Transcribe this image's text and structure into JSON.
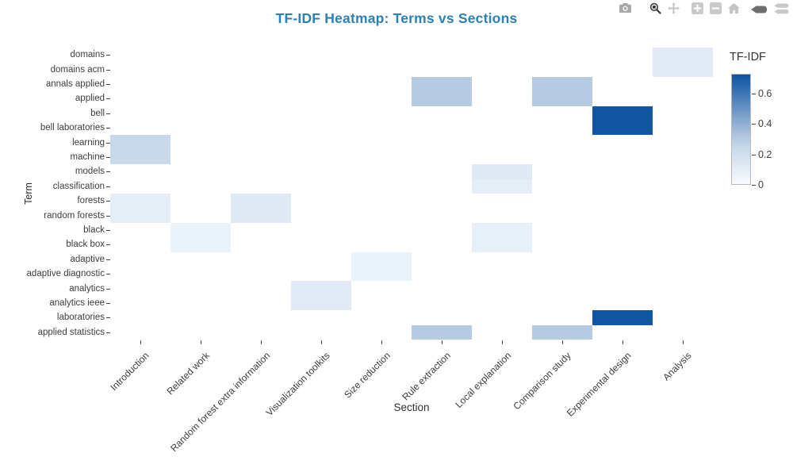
{
  "title": "TF-IDF Heatmap: Terms vs Sections",
  "colors": {
    "title": "#2b80b4",
    "tick_label": "#3d3d3d",
    "heat_low": "#f7fbff",
    "heat_high": "#0d52a2",
    "modebar_inactive": "#c4c4c4",
    "modebar_medium": "#a8a8a8",
    "modebar_active": "#3c3c3c",
    "modebar_hover_active": "#6f6f6f"
  },
  "modebar": {
    "icons": [
      {
        "name": "camera",
        "active": false
      },
      {
        "name": "zoom",
        "active": true
      },
      {
        "name": "pan",
        "active": false
      },
      {
        "name": "zoom-in",
        "active": false
      },
      {
        "name": "zoom-out",
        "active": false
      },
      {
        "name": "home",
        "active": false
      },
      {
        "name": "hover-closest",
        "active": true
      },
      {
        "name": "hover-compare",
        "active": false
      }
    ]
  },
  "chart_data": {
    "type": "heatmap",
    "title": "TF-IDF Heatmap: Terms vs Sections",
    "xlabel": "Section",
    "ylabel": "Term",
    "x_tick_angle": -45,
    "grid": false,
    "x_categories": [
      "Introduction",
      "Related work",
      "Random forest extra information",
      "Visualization toolkits",
      "Size reduction",
      "Rule extraction",
      "Local explanation",
      "Comparison study",
      "Experimental design",
      "Analysis"
    ],
    "y_categories": [
      "domains",
      "domains acm",
      "annals applied",
      "applied",
      "bell",
      "bell laboratories",
      "learning",
      "machine",
      "models",
      "classification",
      "forests",
      "random forests",
      "black",
      "black box",
      "adaptive",
      "adaptive diagnostic",
      "analytics",
      "analytics ieee",
      "laboratories",
      "applied statistics"
    ],
    "colorbar": {
      "title": "TF-IDF",
      "position": "right",
      "min": 0,
      "max": 0.73,
      "ticks": [
        0,
        0.2,
        0.4,
        0.6
      ],
      "colorscale": [
        [
          0,
          "#f7fbff"
        ],
        [
          0.33,
          "#c8d9e9"
        ],
        [
          0.45,
          "#aec4de"
        ],
        [
          1,
          "#0d52a2"
        ]
      ]
    },
    "cells": [
      {
        "term": "domains",
        "section": "Analysis",
        "value": 0.11
      },
      {
        "term": "domains acm",
        "section": "Analysis",
        "value": 0.11
      },
      {
        "term": "annals applied",
        "section": "Rule extraction",
        "value": 0.3
      },
      {
        "term": "annals applied",
        "section": "Comparison study",
        "value": 0.3
      },
      {
        "term": "applied",
        "section": "Rule extraction",
        "value": 0.3
      },
      {
        "term": "applied",
        "section": "Comparison study",
        "value": 0.3
      },
      {
        "term": "bell",
        "section": "Experimental design",
        "value": 0.72
      },
      {
        "term": "bell laboratories",
        "section": "Experimental design",
        "value": 0.72
      },
      {
        "term": "learning",
        "section": "Introduction",
        "value": 0.24
      },
      {
        "term": "machine",
        "section": "Introduction",
        "value": 0.24
      },
      {
        "term": "models",
        "section": "Local explanation",
        "value": 0.13
      },
      {
        "term": "classification",
        "section": "Local explanation",
        "value": 0.09
      },
      {
        "term": "forests",
        "section": "Introduction",
        "value": 0.09
      },
      {
        "term": "forests",
        "section": "Random forest extra information",
        "value": 0.12
      },
      {
        "term": "random forests",
        "section": "Introduction",
        "value": 0.09
      },
      {
        "term": "random forests",
        "section": "Random forest extra information",
        "value": 0.12
      },
      {
        "term": "black",
        "section": "Related work",
        "value": 0.06
      },
      {
        "term": "black",
        "section": "Local explanation",
        "value": 0.08
      },
      {
        "term": "black box",
        "section": "Related work",
        "value": 0.06
      },
      {
        "term": "black box",
        "section": "Local explanation",
        "value": 0.08
      },
      {
        "term": "adaptive",
        "section": "Size reduction",
        "value": 0.06
      },
      {
        "term": "adaptive diagnostic",
        "section": "Size reduction",
        "value": 0.06
      },
      {
        "term": "analytics",
        "section": "Visualization toolkits",
        "value": 0.11
      },
      {
        "term": "analytics ieee",
        "section": "Visualization toolkits",
        "value": 0.11
      },
      {
        "term": "laboratories",
        "section": "Experimental design",
        "value": 0.72
      },
      {
        "term": "applied statistics",
        "section": "Rule extraction",
        "value": 0.3
      },
      {
        "term": "applied statistics",
        "section": "Comparison study",
        "value": 0.3
      }
    ]
  }
}
